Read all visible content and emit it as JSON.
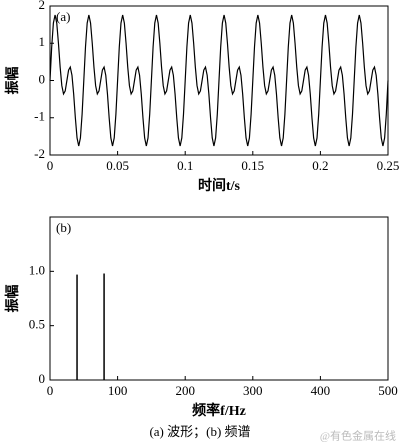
{
  "chart_data": [
    {
      "type": "line",
      "panel": "(a)",
      "xlabel": "时间t/s",
      "ylabel": "振幅",
      "xlim": [
        0,
        0.25
      ],
      "xticks": [
        0,
        0.05,
        0.1,
        0.15,
        0.2,
        {
          "value": 0.25,
          "label": "0.25"
        }
      ],
      "ylim": [
        -2,
        2
      ],
      "yticks": [
        -2,
        -1,
        0,
        1,
        2
      ],
      "color": "#000000",
      "x": [
        0,
        0.00125,
        0.0025,
        0.00375,
        0.005,
        0.00625,
        0.0075,
        0.00875,
        0.01,
        0.01125,
        0.0125,
        0.01375,
        0.015,
        0.01625,
        0.0175,
        0.01875,
        0.02,
        0.02125,
        0.0225,
        0.02375,
        0.025,
        0.02625,
        0.0275,
        0.02875,
        0.03,
        0.03125,
        0.0325,
        0.03375,
        0.035,
        0.03625,
        0.0375,
        0.03875,
        0.04,
        0.04125,
        0.0425,
        0.04375,
        0.045,
        0.04625,
        0.0475,
        0.04875,
        0.05,
        0.05125,
        0.0525,
        0.05375,
        0.055,
        0.05625,
        0.0575,
        0.05875,
        0.06,
        0.06125,
        0.0625,
        0.06375,
        0.065,
        0.06625,
        0.0675,
        0.06875,
        0.07,
        0.07125,
        0.0725,
        0.07375,
        0.075,
        0.07625,
        0.0775,
        0.07875,
        0.08,
        0.08125,
        0.0825,
        0.08375,
        0.085,
        0.08625,
        0.0875,
        0.08875,
        0.09,
        0.09125,
        0.0925,
        0.09375,
        0.095,
        0.09625,
        0.0975,
        0.09875,
        0.1,
        0.10125,
        0.1025,
        0.10375,
        0.105,
        0.10625,
        0.1075,
        0.10875,
        0.11,
        0.11125,
        0.1125,
        0.11375,
        0.115,
        0.11625,
        0.1175,
        0.11875,
        0.12,
        0.12125,
        0.1225,
        0.12375,
        0.125,
        0.12625,
        0.1275,
        0.12875,
        0.13,
        0.13125,
        0.1325,
        0.13375,
        0.135,
        0.13625,
        0.1375,
        0.13875,
        0.14,
        0.14125,
        0.1425,
        0.14375,
        0.145,
        0.14625,
        0.1475,
        0.14875,
        0.15,
        0.15125,
        0.1525,
        0.15375,
        0.155,
        0.15625,
        0.1575,
        0.15875,
        0.16,
        0.16125,
        0.1625,
        0.16375,
        0.165,
        0.16625,
        0.1675,
        0.16875,
        0.17,
        0.17125,
        0.1725,
        0.17375,
        0.175,
        0.17625,
        0.1775,
        0.17875,
        0.18,
        0.18125,
        0.1825,
        0.18375,
        0.185,
        0.18625,
        0.1875,
        0.18875,
        0.19,
        0.19125,
        0.1925,
        0.19375,
        0.195,
        0.19625,
        0.1975,
        0.19875,
        0.2,
        0.20125,
        0.2025,
        0.20375,
        0.205,
        0.20625,
        0.2075,
        0.20875,
        0.21,
        0.21125,
        0.2125,
        0.21375,
        0.215,
        0.21625,
        0.2175,
        0.21875,
        0.22,
        0.22125,
        0.2225,
        0.22375,
        0.225,
        0.22625,
        0.2275,
        0.22875,
        0.23,
        0.23125,
        0.2325,
        0.23375,
        0.235,
        0.23625,
        0.2375,
        0.23875,
        0.24,
        0.24125,
        0.2425,
        0.24375,
        0.245,
        0.24625,
        0.2475,
        0.24875,
        0.25
      ],
      "values": [
        0,
        0.9,
        1.54,
        1.76,
        1.54,
        1,
        0.36,
        -0.14,
        -0.36,
        -0.28,
        0,
        0.28,
        0.36,
        0.14,
        -0.36,
        -1,
        -1.54,
        -1.76,
        -1.54,
        -0.9,
        0,
        0.9,
        1.54,
        1.76,
        1.54,
        1,
        0.36,
        -0.14,
        -0.36,
        -0.28,
        0,
        0.28,
        0.36,
        0.14,
        -0.36,
        -1,
        -1.54,
        -1.76,
        -1.54,
        -0.9,
        0,
        0.9,
        1.54,
        1.76,
        1.54,
        1,
        0.36,
        -0.14,
        -0.36,
        -0.28,
        0,
        0.28,
        0.36,
        0.14,
        -0.36,
        -1,
        -1.54,
        -1.76,
        -1.54,
        -0.9,
        0,
        0.9,
        1.54,
        1.76,
        1.54,
        1,
        0.36,
        -0.14,
        -0.36,
        -0.28,
        0,
        0.28,
        0.36,
        0.14,
        -0.36,
        -1,
        -1.54,
        -1.76,
        -1.54,
        -0.9,
        0,
        0.9,
        1.54,
        1.76,
        1.54,
        1,
        0.36,
        -0.14,
        -0.36,
        -0.28,
        0,
        0.28,
        0.36,
        0.14,
        -0.36,
        -1,
        -1.54,
        -1.76,
        -1.54,
        -0.9,
        0,
        0.9,
        1.54,
        1.76,
        1.54,
        1,
        0.36,
        -0.14,
        -0.36,
        -0.28,
        0,
        0.28,
        0.36,
        0.14,
        -0.36,
        -1,
        -1.54,
        -1.76,
        -1.54,
        -0.9,
        0,
        0.9,
        1.54,
        1.76,
        1.54,
        1,
        0.36,
        -0.14,
        -0.36,
        -0.28,
        0,
        0.28,
        0.36,
        0.14,
        -0.36,
        -1,
        -1.54,
        -1.76,
        -1.54,
        -0.9,
        0,
        0.9,
        1.54,
        1.76,
        1.54,
        1,
        0.36,
        -0.14,
        -0.36,
        -0.28,
        0,
        0.28,
        0.36,
        0.14,
        -0.36,
        -1,
        -1.54,
        -1.76,
        -1.54,
        -0.9,
        0,
        0.9,
        1.54,
        1.76,
        1.54,
        1,
        0.36,
        -0.14,
        -0.36,
        -0.28,
        0,
        0.28,
        0.36,
        0.14,
        -0.36,
        -1,
        -1.54,
        -1.76,
        -1.54,
        -0.9,
        0,
        0.9,
        1.54,
        1.76,
        1.54,
        1,
        0.36,
        -0.14,
        -0.36,
        -0.28,
        0,
        0.28,
        0.36,
        0.14,
        -0.36,
        -1,
        -1.54,
        -1.76,
        -1.54,
        -0.9,
        0
      ]
    },
    {
      "type": "stem",
      "panel": "(b)",
      "xlabel": "频率f/Hz",
      "ylabel": "振幅",
      "xlim": [
        0,
        500
      ],
      "xticks": [
        0,
        100,
        200,
        300,
        400,
        500
      ],
      "ylim": [
        0,
        1.5
      ],
      "yticks": [
        0,
        0.5,
        {
          "value": 1,
          "label": "1.0"
        }
      ],
      "color": "#000000",
      "x": [
        40,
        80
      ],
      "values": [
        0.97,
        0.98
      ]
    }
  ],
  "caption": "(a) 波形；(b) 频谱",
  "watermark": "@有色金属在线"
}
